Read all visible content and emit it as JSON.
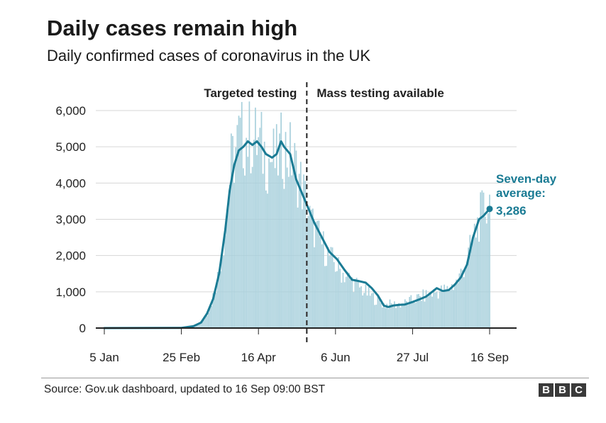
{
  "header": {
    "title": "Daily cases remain high",
    "subtitle": "Daily confirmed cases of coronavirus in the UK"
  },
  "footer": {
    "source": "Source: Gov.uk dashboard, updated to 16 Sep 09:00 BST",
    "logo_letters": [
      "B",
      "B",
      "C"
    ]
  },
  "colors": {
    "bars": "#a8d0dc",
    "average_line": "#1a7b94",
    "annotation": "#1a7b94",
    "grid": "#d6d6d6",
    "axis": "#222222"
  },
  "chart_data": {
    "type": "bar",
    "title": "Daily cases remain high",
    "subtitle": "Daily confirmed cases of coronavirus in the UK",
    "x_axis": {
      "start_date": "5 Jan",
      "end_date": "16 Sep",
      "tick_labels": [
        "5 Jan",
        "25 Feb",
        "16 Apr",
        "6 Jun",
        "27 Jul",
        "16 Sep"
      ]
    },
    "y_axis": {
      "ylim": [
        0,
        6000
      ],
      "tick_labels": [
        "0",
        "1,000",
        "2,000",
        "3,000",
        "4,000",
        "5,000",
        "6,000"
      ],
      "tick_values": [
        0,
        1000,
        2000,
        3000,
        4000,
        5000,
        6000
      ]
    },
    "grid": "horizontal",
    "divider": {
      "date": "18 May",
      "left_label": "Targeted testing",
      "right_label": "Mass testing available"
    },
    "daily_cases_anchors": [
      {
        "date": "5 Jan",
        "value": 0
      },
      {
        "date": "28 Feb",
        "value": 20
      },
      {
        "date": "5 Mar",
        "value": 60
      },
      {
        "date": "10 Mar",
        "value": 250
      },
      {
        "date": "15 Mar",
        "value": 550
      },
      {
        "date": "20 Mar",
        "value": 1400
      },
      {
        "date": "25 Mar",
        "value": 2700
      },
      {
        "date": "29 Mar",
        "value": 4500
      },
      {
        "date": "3 Apr",
        "value": 5200
      },
      {
        "date": "10 Apr",
        "value": 5300
      },
      {
        "date": "16 Apr",
        "value": 5100
      },
      {
        "date": "22 Apr",
        "value": 4700
      },
      {
        "date": "28 Apr",
        "value": 4600
      },
      {
        "date": "2 May",
        "value": 5000
      },
      {
        "date": "8 May",
        "value": 4700
      },
      {
        "date": "15 May",
        "value": 3900
      },
      {
        "date": "20 May",
        "value": 3000
      },
      {
        "date": "27 May",
        "value": 2400
      },
      {
        "date": "3 Jun",
        "value": 1900
      },
      {
        "date": "10 Jun",
        "value": 1550
      },
      {
        "date": "17 Jun",
        "value": 1300
      },
      {
        "date": "24 Jun",
        "value": 1050
      },
      {
        "date": "1 Jul",
        "value": 850
      },
      {
        "date": "8 Jul",
        "value": 650
      },
      {
        "date": "15 Jul",
        "value": 650
      },
      {
        "date": "22 Jul",
        "value": 680
      },
      {
        "date": "29 Jul",
        "value": 800
      },
      {
        "date": "5 Aug",
        "value": 900
      },
      {
        "date": "12 Aug",
        "value": 1000
      },
      {
        "date": "19 Aug",
        "value": 1050
      },
      {
        "date": "26 Aug",
        "value": 1300
      },
      {
        "date": "2 Sep",
        "value": 2000
      },
      {
        "date": "9 Sep",
        "value": 3000
      },
      {
        "date": "16 Sep",
        "value": 3500
      }
    ],
    "seven_day_average": [
      {
        "date": "5 Jan",
        "value": 0
      },
      {
        "date": "25 Feb",
        "value": 5
      },
      {
        "date": "4 Mar",
        "value": 50
      },
      {
        "date": "9 Mar",
        "value": 150
      },
      {
        "date": "13 Mar",
        "value": 400
      },
      {
        "date": "17 Mar",
        "value": 800
      },
      {
        "date": "21 Mar",
        "value": 1500
      },
      {
        "date": "25 Mar",
        "value": 2700
      },
      {
        "date": "28 Mar",
        "value": 3800
      },
      {
        "date": "31 Mar",
        "value": 4500
      },
      {
        "date": "3 Apr",
        "value": 4900
      },
      {
        "date": "6 Apr",
        "value": 5000
      },
      {
        "date": "9 Apr",
        "value": 5150
      },
      {
        "date": "12 Apr",
        "value": 5050
      },
      {
        "date": "15 Apr",
        "value": 5150
      },
      {
        "date": "18 Apr",
        "value": 5000
      },
      {
        "date": "21 Apr",
        "value": 4800
      },
      {
        "date": "25 Apr",
        "value": 4700
      },
      {
        "date": "28 Apr",
        "value": 4800
      },
      {
        "date": "1 May",
        "value": 5150
      },
      {
        "date": "3 May",
        "value": 5000
      },
      {
        "date": "7 May",
        "value": 4800
      },
      {
        "date": "11 May",
        "value": 4100
      },
      {
        "date": "15 May",
        "value": 3700
      },
      {
        "date": "19 May",
        "value": 3300
      },
      {
        "date": "23 May",
        "value": 2900
      },
      {
        "date": "28 May",
        "value": 2500
      },
      {
        "date": "2 Jun",
        "value": 2100
      },
      {
        "date": "7 Jun",
        "value": 1900
      },
      {
        "date": "12 Jun",
        "value": 1600
      },
      {
        "date": "17 Jun",
        "value": 1330
      },
      {
        "date": "21 Jun",
        "value": 1300
      },
      {
        "date": "26 Jun",
        "value": 1250
      },
      {
        "date": "30 Jun",
        "value": 1100
      },
      {
        "date": "4 Jul",
        "value": 900
      },
      {
        "date": "8 Jul",
        "value": 620
      },
      {
        "date": "11 Jul",
        "value": 580
      },
      {
        "date": "14 Jul",
        "value": 620
      },
      {
        "date": "18 Jul",
        "value": 640
      },
      {
        "date": "22 Jul",
        "value": 650
      },
      {
        "date": "27 Jul",
        "value": 720
      },
      {
        "date": "1 Aug",
        "value": 800
      },
      {
        "date": "5 Aug",
        "value": 870
      },
      {
        "date": "9 Aug",
        "value": 1000
      },
      {
        "date": "12 Aug",
        "value": 1100
      },
      {
        "date": "16 Aug",
        "value": 1020
      },
      {
        "date": "20 Aug",
        "value": 1050
      },
      {
        "date": "24 Aug",
        "value": 1200
      },
      {
        "date": "28 Aug",
        "value": 1400
      },
      {
        "date": "1 Sep",
        "value": 1750
      },
      {
        "date": "5 Sep",
        "value": 2500
      },
      {
        "date": "9 Sep",
        "value": 3000
      },
      {
        "date": "12 Sep",
        "value": 3100
      },
      {
        "date": "16 Sep",
        "value": 3286
      }
    ],
    "annotation": {
      "lines": [
        "Seven-day",
        "average:",
        "3,286"
      ],
      "date": "16 Sep",
      "value": 3286
    }
  }
}
